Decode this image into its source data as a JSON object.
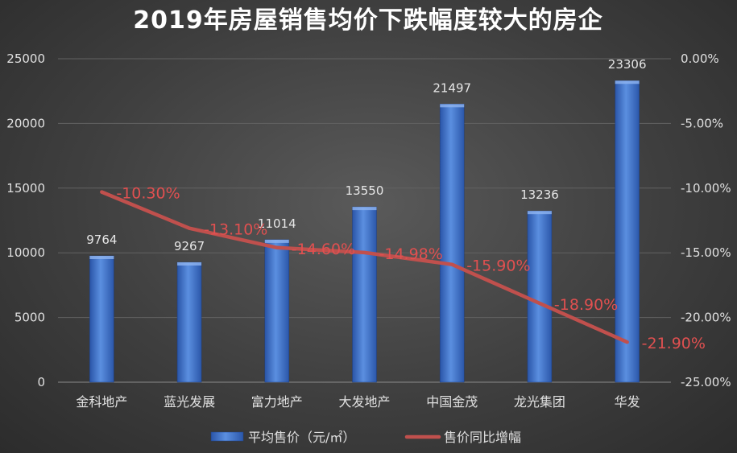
{
  "chart_data": {
    "type": "bar",
    "title": "2019年房屋销售均价下跌幅度较大的房企",
    "categories": [
      "金科地产",
      "蓝光发展",
      "富力地产",
      "大发地产",
      "中国金茂",
      "龙光集团",
      "华发"
    ],
    "series": [
      {
        "name": "平均售价（元/㎡）",
        "type": "bar",
        "axis": "left",
        "values": [
          9764,
          9267,
          11014,
          13550,
          21497,
          13236,
          23306
        ],
        "labels": [
          "9764",
          "9267",
          "11014",
          "13550",
          "21497",
          "13236",
          "23306"
        ],
        "color": "#3a6fc4"
      },
      {
        "name": "售价同比增幅",
        "type": "line",
        "axis": "right",
        "values": [
          -10.3,
          -13.1,
          -14.6,
          -14.98,
          -15.9,
          -18.9,
          -21.9
        ],
        "labels": [
          "-10.30%",
          "-13.10%",
          "-14.60%",
          "-14.98%",
          "-15.90%",
          "-18.90%",
          "-21.90%"
        ],
        "color": "#c0504d"
      }
    ],
    "y_left": {
      "min": 0,
      "max": 25000,
      "ticks": [
        0,
        5000,
        10000,
        15000,
        20000,
        25000
      ],
      "tick_labels": [
        "0",
        "5000",
        "10000",
        "15000",
        "20000",
        "25000"
      ]
    },
    "y_right": {
      "min": -25,
      "max": 0,
      "ticks": [
        0,
        -5,
        -10,
        -15,
        -20,
        -25
      ],
      "tick_labels": [
        "0.00%",
        "-5.00%",
        "-10.00%",
        "-15.00%",
        "-20.00%",
        "-25.00%"
      ]
    },
    "grid": true,
    "legend_position": "bottom"
  }
}
